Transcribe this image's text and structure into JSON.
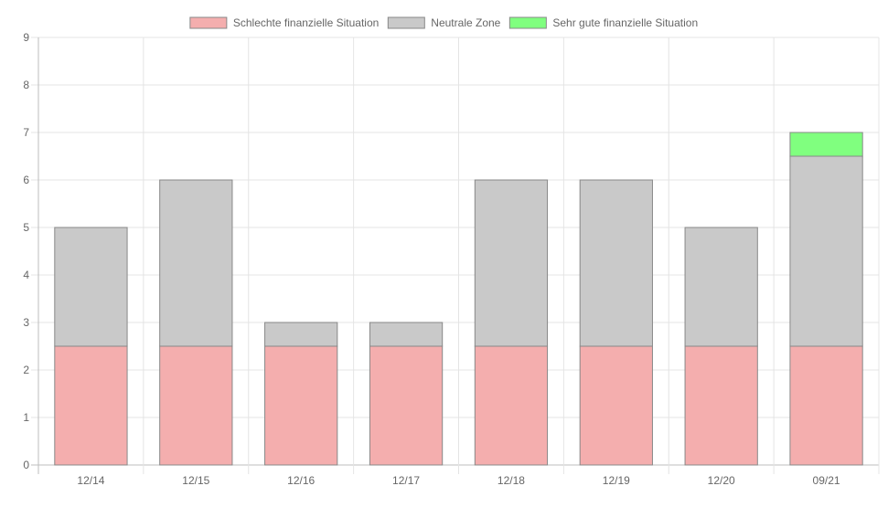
{
  "chart_data": {
    "type": "bar",
    "stacked": true,
    "categories": [
      "12/14",
      "12/15",
      "12/16",
      "12/17",
      "12/18",
      "12/19",
      "12/20",
      "09/21"
    ],
    "series": [
      {
        "name": "Schlechte finanzielle Situation",
        "color": "#f4aeae",
        "values": [
          2.5,
          2.5,
          2.5,
          2.5,
          2.5,
          2.5,
          2.5,
          2.5
        ]
      },
      {
        "name": "Neutrale Zone",
        "color": "#c9c9c9",
        "values": [
          2.5,
          3.5,
          0.5,
          0.5,
          3.5,
          3.5,
          2.5,
          4.0
        ]
      },
      {
        "name": "Sehr gute finanzielle Situation",
        "color": "#80ff7f",
        "values": [
          0,
          0,
          0,
          0,
          0,
          0,
          0,
          0.5
        ]
      }
    ],
    "ylim": [
      0,
      9
    ],
    "yticks": [
      0,
      1,
      2,
      3,
      4,
      5,
      6,
      7,
      8,
      9
    ],
    "grid": true,
    "legend_position": "top",
    "bar_border_color": "#888888"
  }
}
